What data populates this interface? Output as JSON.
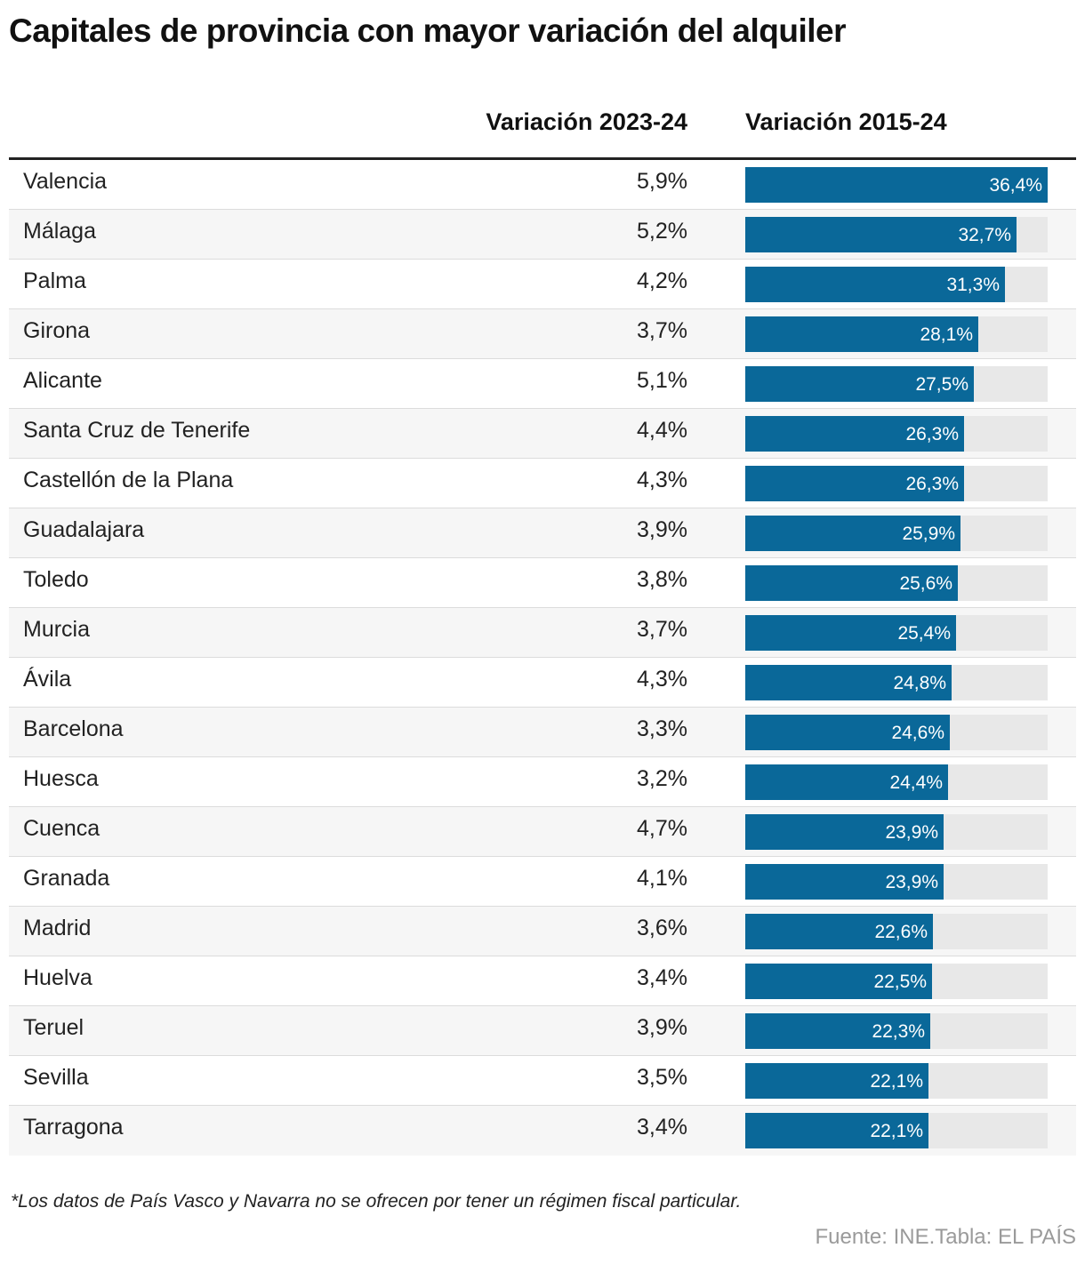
{
  "title": "Capitales de provincia con mayor variación del alquiler",
  "columns": {
    "v2023_24": "Variación 2023-24",
    "v2015_24": "Variación 2015-24"
  },
  "colors": {
    "bar": "#0a6899",
    "track": "#e8e8e8",
    "row_alt": "#f6f6f6"
  },
  "chart_data": {
    "type": "table",
    "title": "Capitales de provincia con mayor variación del alquiler",
    "columns": [
      "",
      "Variación 2023-24",
      "Variación 2015-24"
    ],
    "bar_column": "Variación 2015-24",
    "bar_max": 36.4,
    "rows": [
      {
        "city": "Valencia",
        "v2023_24": "5,9%",
        "v2015_24": 36.4,
        "v2015_24_label": "36,4%"
      },
      {
        "city": "Málaga",
        "v2023_24": "5,2%",
        "v2015_24": 32.7,
        "v2015_24_label": "32,7%"
      },
      {
        "city": "Palma",
        "v2023_24": "4,2%",
        "v2015_24": 31.3,
        "v2015_24_label": "31,3%"
      },
      {
        "city": "Girona",
        "v2023_24": "3,7%",
        "v2015_24": 28.1,
        "v2015_24_label": "28,1%"
      },
      {
        "city": "Alicante",
        "v2023_24": "5,1%",
        "v2015_24": 27.5,
        "v2015_24_label": "27,5%"
      },
      {
        "city": "Santa Cruz de Tenerife",
        "v2023_24": "4,4%",
        "v2015_24": 26.3,
        "v2015_24_label": "26,3%"
      },
      {
        "city": "Castellón de la Plana",
        "v2023_24": "4,3%",
        "v2015_24": 26.3,
        "v2015_24_label": "26,3%"
      },
      {
        "city": "Guadalajara",
        "v2023_24": "3,9%",
        "v2015_24": 25.9,
        "v2015_24_label": "25,9%"
      },
      {
        "city": "Toledo",
        "v2023_24": "3,8%",
        "v2015_24": 25.6,
        "v2015_24_label": "25,6%"
      },
      {
        "city": "Murcia",
        "v2023_24": "3,7%",
        "v2015_24": 25.4,
        "v2015_24_label": "25,4%"
      },
      {
        "city": "Ávila",
        "v2023_24": "4,3%",
        "v2015_24": 24.8,
        "v2015_24_label": "24,8%"
      },
      {
        "city": "Barcelona",
        "v2023_24": "3,3%",
        "v2015_24": 24.6,
        "v2015_24_label": "24,6%"
      },
      {
        "city": "Huesca",
        "v2023_24": "3,2%",
        "v2015_24": 24.4,
        "v2015_24_label": "24,4%"
      },
      {
        "city": "Cuenca",
        "v2023_24": "4,7%",
        "v2015_24": 23.9,
        "v2015_24_label": "23,9%"
      },
      {
        "city": "Granada",
        "v2023_24": "4,1%",
        "v2015_24": 23.9,
        "v2015_24_label": "23,9%"
      },
      {
        "city": "Madrid",
        "v2023_24": "3,6%",
        "v2015_24": 22.6,
        "v2015_24_label": "22,6%"
      },
      {
        "city": "Huelva",
        "v2023_24": "3,4%",
        "v2015_24": 22.5,
        "v2015_24_label": "22,5%"
      },
      {
        "city": "Teruel",
        "v2023_24": "3,9%",
        "v2015_24": 22.3,
        "v2015_24_label": "22,3%"
      },
      {
        "city": "Sevilla",
        "v2023_24": "3,5%",
        "v2015_24": 22.1,
        "v2015_24_label": "22,1%"
      },
      {
        "city": "Tarragona",
        "v2023_24": "3,4%",
        "v2015_24": 22.1,
        "v2015_24_label": "22,1%"
      }
    ]
  },
  "footnote": "*Los datos de País Vasco y Navarra no se ofrecen por tener un régimen fiscal particular.",
  "source": "Fuente: INE.Tabla: EL PAÍS"
}
